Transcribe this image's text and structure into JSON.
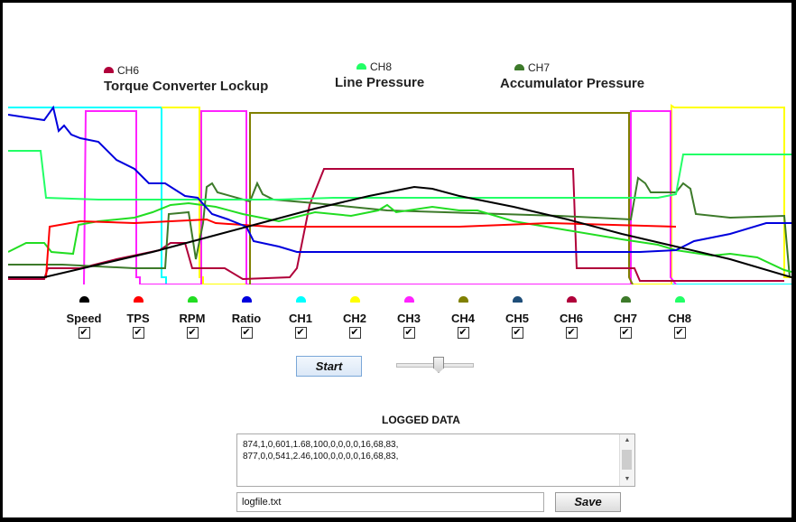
{
  "colors": {
    "speed": "#000000",
    "tps": "#ff0000",
    "rpm": "#22dd22",
    "ratio": "#0000dd",
    "ch1": "#00ffff",
    "ch2": "#ffff00",
    "ch3": "#ff22ff",
    "ch4": "#808000",
    "ch5": "#1f4e79",
    "ch6": "#b0003a",
    "ch7": "#3d7a2a",
    "ch8": "#22ff66"
  },
  "plot_legend": [
    {
      "ch": "CH6",
      "desc": "Torque Converter Lockup",
      "color_key": "ch6"
    },
    {
      "ch": "CH8",
      "desc": "Line Pressure",
      "color_key": "ch8"
    },
    {
      "ch": "CH7",
      "desc": "Accumulator Pressure",
      "color_key": "ch7"
    }
  ],
  "channels": [
    {
      "label": "Speed",
      "color_key": "speed",
      "checked": "✔"
    },
    {
      "label": "TPS",
      "color_key": "tps",
      "checked": "✔"
    },
    {
      "label": "RPM",
      "color_key": "rpm",
      "checked": "✔"
    },
    {
      "label": "Ratio",
      "color_key": "ratio",
      "checked": "✔"
    },
    {
      "label": "CH1",
      "color_key": "ch1",
      "checked": "✔"
    },
    {
      "label": "CH2",
      "color_key": "ch2",
      "checked": "✔"
    },
    {
      "label": "CH3",
      "color_key": "ch3",
      "checked": "✔"
    },
    {
      "label": "CH4",
      "color_key": "ch4",
      "checked": "✔"
    },
    {
      "label": "CH5",
      "color_key": "ch5",
      "checked": "✔"
    },
    {
      "label": "CH6",
      "color_key": "ch6",
      "checked": "✔"
    },
    {
      "label": "CH7",
      "color_key": "ch7",
      "checked": "✔"
    },
    {
      "label": "CH8",
      "color_key": "ch8",
      "checked": "✔"
    }
  ],
  "controls": {
    "start_label": "Start",
    "save_label": "Save",
    "slider_value": 0.55
  },
  "log": {
    "title": "LOGGED DATA",
    "lines": [
      "874,1,0,601,1.68,100,0,0,0,0,16,68,83,",
      "877,0,0,541,2.46,100,0,0,0,0,16,68,83,"
    ],
    "filename": "logfile.txt"
  }
}
